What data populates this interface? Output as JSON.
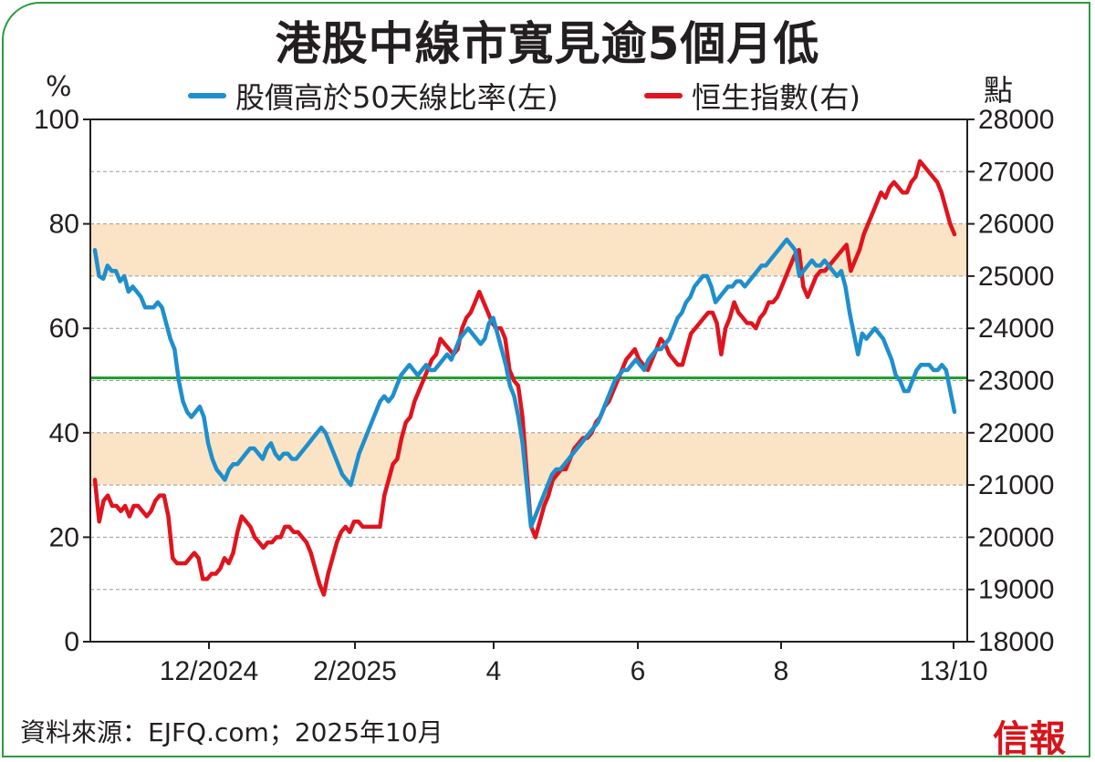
{
  "title": "港股中線市寬見逾5個月低",
  "left_unit": "%",
  "right_unit": "點",
  "source": "資料來源：EJFQ.com；2025年10月",
  "logo": "信報",
  "colors": {
    "breadth_line": "#1f8fcc",
    "hsi_line": "#e0141e",
    "band": "#fbe4c5",
    "threshold": "#1e9a2d",
    "frame": "#2e9a43"
  },
  "chart_data": {
    "type": "line",
    "title": "港股中線市寬見逾5個月低",
    "xlabel": "",
    "x_tick_labels": [
      "12/2024",
      "2/2025",
      "4",
      "6",
      "8",
      "13/10"
    ],
    "y_left": {
      "label": "%",
      "lim": [
        0,
        100
      ],
      "ticks": [
        0,
        20,
        40,
        60,
        80,
        100
      ]
    },
    "y_right": {
      "label": "點",
      "lim": [
        18000,
        28000
      ],
      "ticks": [
        18000,
        19000,
        20000,
        21000,
        22000,
        23000,
        24000,
        25000,
        26000,
        27000,
        28000
      ]
    },
    "grid": "horizontal dashed",
    "legend_position": "top-center",
    "shaded_bands_pct": [
      [
        30,
        40
      ],
      [
        70,
        80
      ]
    ],
    "reference_line_pct": 50.5,
    "series": [
      {
        "name": "股價高於50天線比率(左)",
        "axis": "left",
        "values": [
          75,
          70,
          69.5,
          72,
          71,
          71,
          69,
          70,
          67,
          68,
          67,
          66,
          64,
          64,
          64,
          65,
          64,
          61,
          58,
          56,
          50,
          46,
          44,
          43,
          44,
          45,
          43,
          38,
          35,
          33,
          32,
          31,
          33,
          34,
          34,
          35,
          36,
          37,
          37,
          36,
          35,
          37,
          38,
          36,
          35,
          36,
          36,
          35,
          35,
          36,
          37,
          38,
          39,
          40,
          41,
          40,
          38,
          36,
          34,
          32,
          31,
          30,
          33,
          36,
          38,
          40,
          42,
          44,
          46,
          47,
          46,
          47,
          49,
          51,
          52,
          53,
          52,
          51,
          52,
          53,
          52,
          52,
          53,
          54,
          55,
          54,
          56,
          58,
          59,
          60,
          59,
          58,
          57,
          58,
          61,
          62,
          59,
          56,
          53,
          49,
          47,
          43,
          38,
          30,
          22,
          24,
          26,
          28,
          30,
          32,
          33,
          33,
          34,
          35,
          36,
          37,
          38,
          39,
          40,
          41,
          42,
          44,
          46,
          48,
          50,
          51,
          52,
          52,
          53,
          54,
          53,
          52,
          54,
          55,
          56,
          56,
          57,
          58,
          60,
          62,
          63,
          65,
          66,
          68,
          69,
          70,
          70,
          68,
          65,
          66,
          67,
          68,
          68,
          69,
          69,
          68,
          69,
          70,
          71,
          72,
          72,
          73,
          74,
          75,
          76,
          77,
          76,
          75,
          70,
          71,
          72,
          73,
          72,
          72,
          73,
          72,
          71,
          70,
          71,
          68,
          63,
          59,
          55,
          59,
          58,
          59,
          60,
          59,
          58,
          56,
          54,
          51,
          50,
          48,
          48,
          50,
          52,
          53,
          53,
          53,
          52,
          52,
          53,
          52,
          48,
          44
        ]
      },
      {
        "name": "恒生指數(右)",
        "axis": "right",
        "values": [
          21100,
          20300,
          20700,
          20800,
          20600,
          20600,
          20500,
          20600,
          20400,
          20600,
          20600,
          20500,
          20400,
          20500,
          20700,
          20800,
          20800,
          20400,
          19600,
          19500,
          19500,
          19500,
          19600,
          19700,
          19600,
          19200,
          19200,
          19300,
          19300,
          19400,
          19600,
          19500,
          19700,
          20100,
          20400,
          20300,
          20200,
          20000,
          19900,
          19800,
          19900,
          19900,
          20000,
          20000,
          20200,
          20200,
          20100,
          20100,
          20000,
          19900,
          19700,
          19400,
          19100,
          18900,
          19300,
          19600,
          19900,
          20100,
          20200,
          20100,
          20300,
          20300,
          20200,
          20200,
          20200,
          20200,
          20200,
          20800,
          21100,
          21400,
          21500,
          21900,
          22200,
          22300,
          22600,
          22800,
          23000,
          23200,
          23400,
          23500,
          23800,
          23700,
          23600,
          23500,
          23600,
          24000,
          24200,
          24300,
          24500,
          24700,
          24500,
          24300,
          24100,
          24000,
          24000,
          23800,
          23200,
          23000,
          22900,
          22300,
          21200,
          20200,
          20000,
          20300,
          20600,
          20800,
          21100,
          21200,
          21300,
          21300,
          21500,
          21700,
          21800,
          21900,
          21900,
          22000,
          22200,
          22300,
          22500,
          22600,
          22800,
          23000,
          23200,
          23400,
          23500,
          23600,
          23400,
          23300,
          23200,
          23400,
          23600,
          23800,
          23700,
          23500,
          23400,
          23300,
          23300,
          23600,
          23900,
          24000,
          24100,
          24200,
          24300,
          24300,
          24100,
          23500,
          24000,
          24200,
          24500,
          24300,
          24200,
          24100,
          24100,
          24000,
          24200,
          24300,
          24500,
          24500,
          24600,
          24800,
          25000,
          25200,
          25400,
          25500,
          24800,
          24600,
          24800,
          25000,
          25100,
          25100,
          25200,
          25300,
          25400,
          25500,
          25600,
          25100,
          25300,
          25500,
          25800,
          26000,
          26200,
          26400,
          26600,
          26500,
          26700,
          26800,
          26700,
          26600,
          26600,
          26800,
          26900,
          27200,
          27100,
          27000,
          26900,
          26800,
          26600,
          26300,
          26000,
          25800
        ]
      }
    ]
  }
}
